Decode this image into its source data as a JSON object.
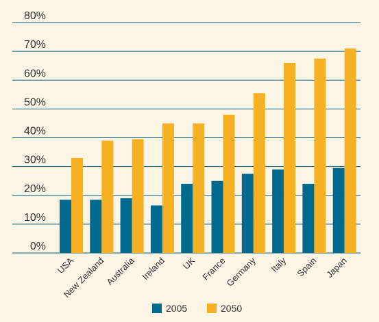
{
  "chart_data": {
    "type": "bar",
    "title": "",
    "xlabel": "",
    "ylabel": "",
    "categories": [
      "USA",
      "New Zealand",
      "Australia",
      "Ireland",
      "UK",
      "France",
      "Germany",
      "Italy",
      "Spain",
      "Japan"
    ],
    "series": [
      {
        "name": "2005",
        "color": "#006a8e",
        "values": [
          18.5,
          18.5,
          19,
          16.5,
          24,
          25,
          27.5,
          29,
          24,
          29.5
        ]
      },
      {
        "name": "2050",
        "color": "#f6b024",
        "values": [
          33,
          39,
          39.5,
          45,
          45,
          48,
          55.5,
          66,
          67.5,
          71
        ]
      }
    ],
    "ylim": [
      0,
      80
    ],
    "yticks": [
      0,
      10,
      20,
      30,
      40,
      50,
      60,
      70,
      80
    ],
    "ytick_format": "{v}%",
    "grid": true,
    "legend_position": "bottom-center",
    "colors": {
      "background": "#fdf5e6",
      "grid": "#0b5c7a",
      "text": "#333333"
    }
  }
}
